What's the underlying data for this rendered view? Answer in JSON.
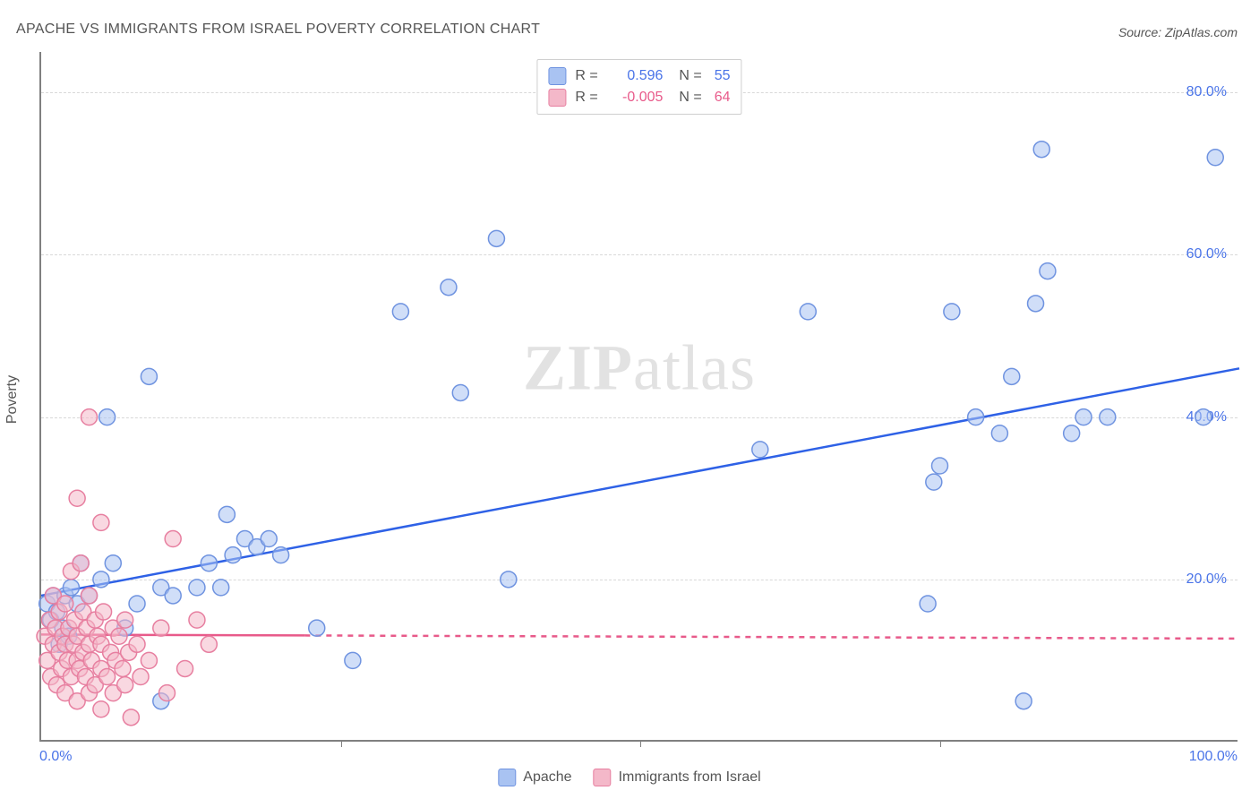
{
  "title": "APACHE VS IMMIGRANTS FROM ISRAEL POVERTY CORRELATION CHART",
  "source_label": "Source: ZipAtlas.com",
  "watermark_zip": "ZIP",
  "watermark_atlas": "atlas",
  "chart": {
    "type": "scatter",
    "xlim": [
      0,
      100
    ],
    "ylim": [
      0,
      85
    ],
    "x_tick_min_label": "0.0%",
    "x_tick_max_label": "100.0%",
    "x_minor_ticks": [
      25,
      50,
      75
    ],
    "y_gridlines": [
      20,
      40,
      60,
      80
    ],
    "y_tick_labels": [
      "20.0%",
      "40.0%",
      "60.0%",
      "80.0%"
    ],
    "y_axis_label": "Poverty",
    "background_color": "#ffffff",
    "grid_color": "#d8d8d8",
    "axis_color": "#808080",
    "marker_radius": 9,
    "marker_stroke_width": 1.5,
    "regression_line_width": 2.5,
    "series": [
      {
        "id": "apache",
        "label": "Apache",
        "fill_color": "#a9c3f2",
        "fill_opacity": 0.55,
        "stroke_color": "#6f93e0",
        "value_color": "#4a74e8",
        "r": "0.596",
        "n": "55",
        "regression": {
          "x1": 0,
          "y1": 18,
          "x2": 100,
          "y2": 46,
          "color": "#2e61e6",
          "dashed": false
        },
        "points": [
          [
            0.5,
            17
          ],
          [
            0.8,
            15
          ],
          [
            1.0,
            18
          ],
          [
            1.3,
            16
          ],
          [
            1.5,
            12
          ],
          [
            1.8,
            14
          ],
          [
            2.0,
            18
          ],
          [
            2.3,
            13
          ],
          [
            2.5,
            19
          ],
          [
            3.0,
            17
          ],
          [
            3.3,
            22
          ],
          [
            4.0,
            18
          ],
          [
            5.0,
            20
          ],
          [
            5.5,
            40
          ],
          [
            6.0,
            22
          ],
          [
            7.0,
            14
          ],
          [
            8.0,
            17
          ],
          [
            9.0,
            45
          ],
          [
            10.0,
            19
          ],
          [
            10.0,
            5
          ],
          [
            11.0,
            18
          ],
          [
            13.0,
            19
          ],
          [
            14.0,
            22
          ],
          [
            15.0,
            19
          ],
          [
            15.5,
            28
          ],
          [
            16.0,
            23
          ],
          [
            17.0,
            25
          ],
          [
            18.0,
            24
          ],
          [
            19.0,
            25
          ],
          [
            20.0,
            23
          ],
          [
            23.0,
            14
          ],
          [
            26.0,
            10
          ],
          [
            30.0,
            53
          ],
          [
            34.0,
            56
          ],
          [
            35.0,
            43
          ],
          [
            38.0,
            62
          ],
          [
            39.0,
            20
          ],
          [
            60.0,
            36
          ],
          [
            64.0,
            53
          ],
          [
            74.0,
            17
          ],
          [
            74.5,
            32
          ],
          [
            75.0,
            34
          ],
          [
            76.0,
            53
          ],
          [
            78.0,
            40
          ],
          [
            80.0,
            38
          ],
          [
            81.0,
            45
          ],
          [
            82.0,
            5
          ],
          [
            83.0,
            54
          ],
          [
            83.5,
            73
          ],
          [
            84.0,
            58
          ],
          [
            86.0,
            38
          ],
          [
            87.0,
            40
          ],
          [
            89.0,
            40
          ],
          [
            97.0,
            40
          ],
          [
            98.0,
            72
          ]
        ]
      },
      {
        "id": "israel",
        "label": "Immigrants from Israel",
        "fill_color": "#f4b8c9",
        "fill_opacity": 0.55,
        "stroke_color": "#e77fa0",
        "value_color": "#e85a8a",
        "r": "-0.005",
        "n": "64",
        "regression": {
          "x1": 0,
          "y1": 13.2,
          "x2": 100,
          "y2": 12.7,
          "color": "#e85a8a",
          "dashed": true,
          "solid_until_x": 22
        },
        "points": [
          [
            0.3,
            13
          ],
          [
            0.5,
            10
          ],
          [
            0.7,
            15
          ],
          [
            0.8,
            8
          ],
          [
            1.0,
            12
          ],
          [
            1.0,
            18
          ],
          [
            1.2,
            14
          ],
          [
            1.3,
            7
          ],
          [
            1.5,
            11
          ],
          [
            1.5,
            16
          ],
          [
            1.7,
            9
          ],
          [
            1.8,
            13
          ],
          [
            2.0,
            6
          ],
          [
            2.0,
            12
          ],
          [
            2.0,
            17
          ],
          [
            2.2,
            10
          ],
          [
            2.3,
            14
          ],
          [
            2.5,
            8
          ],
          [
            2.5,
            21
          ],
          [
            2.7,
            12
          ],
          [
            2.8,
            15
          ],
          [
            3.0,
            5
          ],
          [
            3.0,
            10
          ],
          [
            3.0,
            13
          ],
          [
            3.0,
            30
          ],
          [
            3.2,
            9
          ],
          [
            3.3,
            22
          ],
          [
            3.5,
            11
          ],
          [
            3.5,
            16
          ],
          [
            3.7,
            8
          ],
          [
            3.8,
            14
          ],
          [
            4.0,
            6
          ],
          [
            4.0,
            12
          ],
          [
            4.0,
            18
          ],
          [
            4.0,
            40
          ],
          [
            4.2,
            10
          ],
          [
            4.5,
            7
          ],
          [
            4.5,
            15
          ],
          [
            4.7,
            13
          ],
          [
            5.0,
            4
          ],
          [
            5.0,
            9
          ],
          [
            5.0,
            12
          ],
          [
            5.0,
            27
          ],
          [
            5.2,
            16
          ],
          [
            5.5,
            8
          ],
          [
            5.8,
            11
          ],
          [
            6.0,
            6
          ],
          [
            6.0,
            14
          ],
          [
            6.2,
            10
          ],
          [
            6.5,
            13
          ],
          [
            6.8,
            9
          ],
          [
            7.0,
            7
          ],
          [
            7.0,
            15
          ],
          [
            7.3,
            11
          ],
          [
            7.5,
            3
          ],
          [
            8.0,
            12
          ],
          [
            8.3,
            8
          ],
          [
            9.0,
            10
          ],
          [
            10.0,
            14
          ],
          [
            10.5,
            6
          ],
          [
            11.0,
            25
          ],
          [
            12.0,
            9
          ],
          [
            13.0,
            15
          ],
          [
            14.0,
            12
          ]
        ]
      }
    ]
  },
  "legend_top": {
    "r_label": "R =",
    "n_label": "N ="
  },
  "legend_bottom_labels": [
    "Apache",
    "Immigrants from Israel"
  ]
}
